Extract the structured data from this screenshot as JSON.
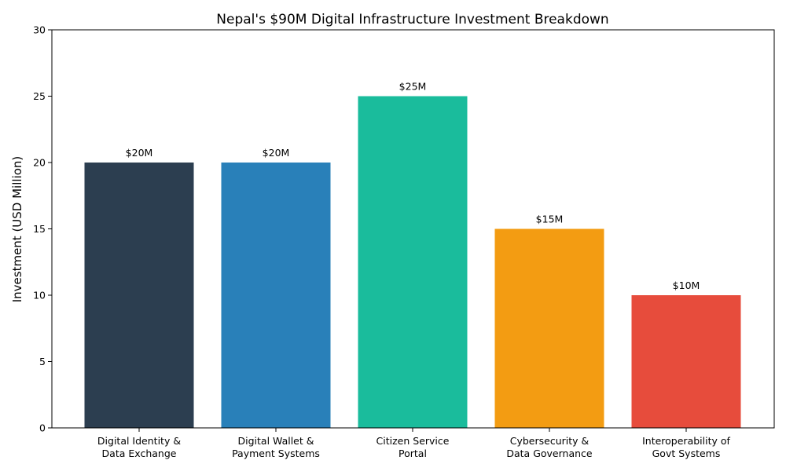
{
  "chart_data": {
    "type": "bar",
    "title": "Nepal's $90M Digital Infrastructure Investment Breakdown",
    "xlabel": "",
    "ylabel": "Investment (USD Million)",
    "ylim": [
      0,
      30
    ],
    "yticks": [
      0,
      5,
      10,
      15,
      20,
      25,
      30
    ],
    "grid": false,
    "categories": [
      [
        "Digital Identity &",
        "Data Exchange"
      ],
      [
        "Digital Wallet &",
        "Payment Systems"
      ],
      [
        "Citizen Service",
        "Portal"
      ],
      [
        "Cybersecurity &",
        "Data Governance"
      ],
      [
        "Interoperability of",
        "Govt Systems"
      ]
    ],
    "values": [
      20,
      20,
      25,
      15,
      10
    ],
    "data_labels": [
      "$20M",
      "$20M",
      "$25M",
      "$15M",
      "$10M"
    ],
    "colors": [
      "#2c3e50",
      "#2980b9",
      "#1abc9c",
      "#f39c12",
      "#e74c3c"
    ]
  }
}
